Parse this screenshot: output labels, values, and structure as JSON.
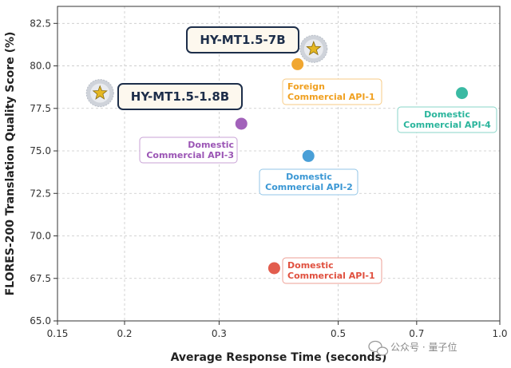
{
  "chart_data": {
    "type": "scatter",
    "title": "",
    "xlabel": "Average Response Time (seconds)",
    "ylabel": "FLORES-200 Translation Quality Score (%)",
    "x_scale": "log",
    "xlim": [
      0.15,
      1.0
    ],
    "ylim": [
      65.0,
      83.5
    ],
    "x_ticks": [
      0.15,
      0.2,
      0.3,
      0.5,
      0.7,
      1.0
    ],
    "x_tick_labels": [
      "0.15",
      "0.2",
      "0.3",
      "0.5",
      "0.7",
      "1.0"
    ],
    "y_ticks": [
      65.0,
      67.5,
      70.0,
      72.5,
      75.0,
      77.5,
      80.0,
      82.5
    ],
    "y_tick_labels": [
      "65.0",
      "67.5",
      "70.0",
      "72.5",
      "75.0",
      "77.5",
      "80.0",
      "82.5"
    ],
    "grid": true,
    "points": [
      {
        "label": "HY-MT1.5-7B",
        "x": 0.45,
        "y": 81.0,
        "marker": "star",
        "color": "#e5b722"
      },
      {
        "label": "HY-MT1.5-1.8B",
        "x": 0.18,
        "y": 78.4,
        "marker": "star",
        "color": "#e5b722"
      },
      {
        "label": "Foreign\nCommercial API-1",
        "x": 0.42,
        "y": 80.1,
        "marker": "circle",
        "color": "#f0a020"
      },
      {
        "label": "Domestic\nCommercial API-4",
        "x": 0.85,
        "y": 78.4,
        "marker": "circle",
        "color": "#2ab59c"
      },
      {
        "label": "Domestic\nCommercial API-3",
        "x": 0.33,
        "y": 76.6,
        "marker": "circle",
        "color": "#9b55b5"
      },
      {
        "label": "Domestic\nCommercial API-2",
        "x": 0.44,
        "y": 74.7,
        "marker": "circle",
        "color": "#3a97d4"
      },
      {
        "label": "Domestic\nCommercial API-1",
        "x": 0.38,
        "y": 68.1,
        "marker": "circle",
        "color": "#e0503f"
      }
    ]
  },
  "watermark": {
    "text": "公众号 · 量子位"
  }
}
